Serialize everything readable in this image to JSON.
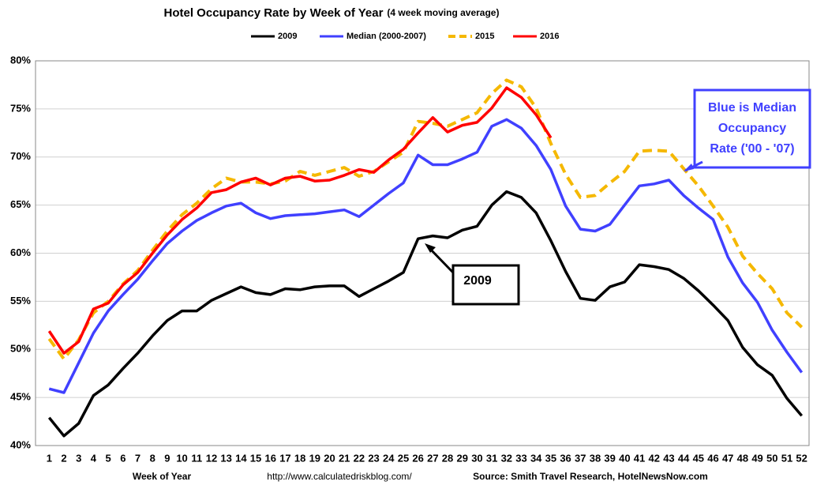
{
  "chart_data": {
    "type": "line",
    "title": "Hotel Occupancy Rate by  Week of Year",
    "subtitle": "(4 week moving average)",
    "x_label": "Week of Year",
    "url": "http://www.calculatedriskblog.com/",
    "source": "Source: Smith Travel Research, HotelNewsNow.com",
    "annotations": [
      {
        "lines": [
          "Blue is Median",
          "Occupancy",
          "Rate ('00 - '07)"
        ]
      },
      {
        "lines": [
          "2009"
        ]
      }
    ],
    "categories": [
      "1",
      "2",
      "3",
      "4",
      "5",
      "6",
      "7",
      "8",
      "9",
      "10",
      "11",
      "12",
      "13",
      "14",
      "15",
      "16",
      "17",
      "18",
      "19",
      "20",
      "21",
      "22",
      "23",
      "24",
      "25",
      "26",
      "27",
      "28",
      "29",
      "30",
      "31",
      "32",
      "33",
      "34",
      "35",
      "36",
      "37",
      "38",
      "39",
      "40",
      "41",
      "42",
      "43",
      "44",
      "45",
      "46",
      "47",
      "48",
      "49",
      "50",
      "51",
      "52"
    ],
    "ylim": [
      40,
      80
    ],
    "yticks": [
      {
        "value": 40,
        "label": "40%"
      },
      {
        "value": 45,
        "label": "45%"
      },
      {
        "value": 50,
        "label": "50%"
      },
      {
        "value": 55,
        "label": "55%"
      },
      {
        "value": 60,
        "label": "60%"
      },
      {
        "value": 65,
        "label": "65%"
      },
      {
        "value": 70,
        "label": "70%"
      },
      {
        "value": 75,
        "label": "75%"
      },
      {
        "value": 80,
        "label": "80%"
      }
    ],
    "grid": true,
    "legend": "top",
    "series": [
      {
        "name": "2009",
        "color": "#000000",
        "style": "solid",
        "values": [
          42.9,
          41.0,
          42.3,
          45.2,
          46.3,
          48.0,
          49.6,
          51.4,
          53.0,
          54.0,
          54.0,
          55.1,
          55.8,
          56.5,
          55.9,
          55.7,
          56.3,
          56.2,
          56.5,
          56.6,
          56.6,
          55.5,
          56.3,
          57.1,
          58.0,
          61.5,
          61.8,
          61.6,
          62.4,
          62.8,
          65.0,
          66.4,
          65.8,
          64.2,
          61.3,
          58.1,
          55.3,
          55.1,
          56.5,
          57.0,
          58.8,
          58.6,
          58.3,
          57.4,
          56.1,
          54.6,
          53.0,
          50.2,
          48.4,
          47.3,
          44.9,
          43.1
        ]
      },
      {
        "name": "Median (2000-2007)",
        "color": "#4040ff",
        "style": "solid",
        "values": [
          45.9,
          45.5,
          48.6,
          51.7,
          54.0,
          55.7,
          57.3,
          59.2,
          61.0,
          62.3,
          63.4,
          64.2,
          64.9,
          65.2,
          64.2,
          63.6,
          63.9,
          64.0,
          64.1,
          64.3,
          64.5,
          63.8,
          65.0,
          66.2,
          67.3,
          70.2,
          69.2,
          69.2,
          69.8,
          70.5,
          73.2,
          73.9,
          73.0,
          71.2,
          68.7,
          64.9,
          62.5,
          62.3,
          63.0,
          65.0,
          67.0,
          67.2,
          67.6,
          66.0,
          64.7,
          63.5,
          59.6,
          56.9,
          54.9,
          52.0,
          49.7,
          47.6
        ]
      },
      {
        "name": "2015",
        "color": "#f5b800",
        "style": "dashed",
        "values": [
          51.1,
          49.0,
          51.0,
          53.8,
          55.0,
          56.8,
          58.2,
          60.3,
          62.3,
          64.0,
          65.2,
          66.7,
          67.8,
          67.4,
          67.4,
          67.2,
          67.5,
          68.5,
          68.1,
          68.5,
          68.9,
          68.0,
          68.5,
          69.5,
          70.5,
          73.7,
          73.5,
          73.2,
          73.9,
          74.6,
          76.6,
          78.0,
          77.3,
          75.1,
          71.4,
          68.2,
          65.8,
          66.0,
          67.3,
          68.5,
          70.6,
          70.7,
          70.6,
          68.8,
          67.0,
          64.9,
          62.7,
          59.7,
          57.9,
          56.3,
          53.8,
          52.3
        ]
      },
      {
        "name": "2016",
        "color": "#ff0000",
        "style": "solid",
        "values": [
          51.9,
          49.6,
          50.8,
          54.2,
          54.8,
          56.7,
          58.0,
          60.0,
          61.9,
          63.5,
          64.7,
          66.3,
          66.6,
          67.4,
          67.8,
          67.1,
          67.8,
          68.0,
          67.5,
          67.6,
          68.1,
          68.7,
          68.4,
          69.7,
          70.8,
          72.5,
          74.1,
          72.6,
          73.3,
          73.6,
          75.1,
          77.2,
          76.2,
          74.4,
          72.0,
          null,
          null,
          null,
          null,
          null,
          null,
          null,
          null,
          null,
          null,
          null,
          null,
          null,
          null,
          null,
          null,
          null
        ]
      }
    ]
  }
}
